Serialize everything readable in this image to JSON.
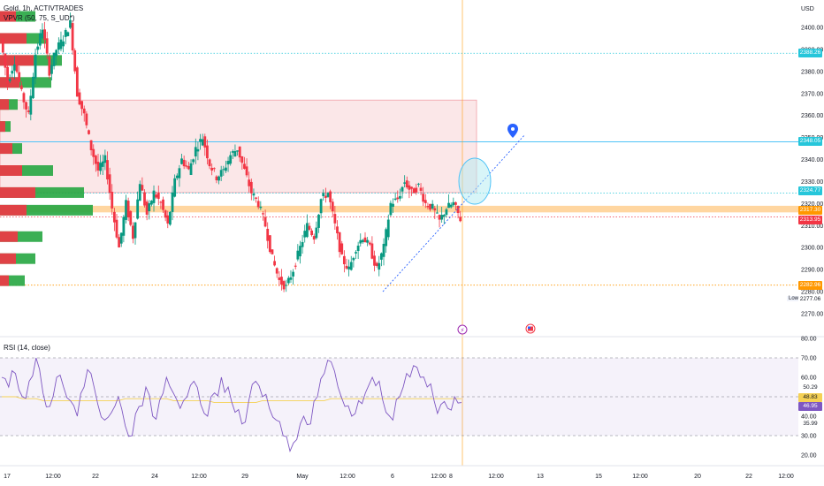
{
  "header": {
    "symbol_line": "Gold, 1h, ACTIVTRADES",
    "vpvr_line": "VPVR (50, 75, S_UD*)",
    "currency": "USD"
  },
  "rsi_legend": "RSI (14, close)",
  "low_label": "Low",
  "colors": {
    "up": "#089981",
    "down": "#f23645",
    "vp_up": "#26a641",
    "vp_down": "#f23645",
    "zone": "#f7d3d6",
    "orange_band": "#ffc880",
    "hline_blue": "#26c6da",
    "rsi": "#7e57c2",
    "rsi_ma": "#f5d154",
    "vline": "#ff9800",
    "marker": "#2962ff"
  },
  "icons": [
    "lightning-event-icon",
    "us-flag-event-icon",
    "location-pin-icon"
  ],
  "chart_data": [
    {
      "type": "candlestick",
      "title": "Gold, 1h, ACTIVTRADES",
      "ylim": [
        2265,
        2415
      ],
      "y_ticks": [
        "2400.00",
        "2390.00",
        "2380.00",
        "2370.00",
        "2360.00",
        "2350.00",
        "2340.00",
        "2330.00",
        "2320.00",
        "2310.00",
        "2300.00",
        "2290.00",
        "2280.00",
        "2270.00"
      ],
      "price_labels": [
        {
          "value": "2388.26",
          "color": "#26c6da"
        },
        {
          "value": "2348.05",
          "color": "#26c6da"
        },
        {
          "value": "2324.77",
          "color": "#26c6da"
        },
        {
          "value": "2317.30",
          "color": "#ff9800"
        },
        {
          "value": "2313.95",
          "color": "#f23645"
        },
        {
          "value": "2282.96",
          "color": "#ff9800"
        },
        {
          "value": "2277.06",
          "color": "#ffffff"
        }
      ],
      "zone": {
        "from": 2325,
        "to": 2367
      },
      "orange_band": {
        "from": 2316,
        "to": 2319
      },
      "price_path": [
        2395,
        2375,
        2385,
        2370,
        2360,
        2388,
        2400,
        2380,
        2390,
        2395,
        2402,
        2370,
        2360,
        2345,
        2335,
        2340,
        2318,
        2300,
        2320,
        2305,
        2330,
        2315,
        2325,
        2320,
        2310,
        2330,
        2340,
        2335,
        2345,
        2350,
        2338,
        2332,
        2335,
        2342,
        2345,
        2335,
        2325,
        2320,
        2310,
        2295,
        2285,
        2282,
        2290,
        2300,
        2310,
        2305,
        2322,
        2325,
        2310,
        2295,
        2290,
        2300,
        2305,
        2300,
        2290,
        2300,
        2320,
        2322,
        2330,
        2325,
        2328,
        2320,
        2318,
        2312,
        2318,
        2320,
        2313
      ],
      "volume_profile_levels": [
        2405,
        2395,
        2385,
        2375,
        2365,
        2355,
        2345,
        2335,
        2325,
        2317,
        2305,
        2295,
        2285
      ]
    },
    {
      "type": "line",
      "title": "RSI (14, close)",
      "ylim": [
        17,
        82
      ],
      "y_ticks": [
        "80.00",
        "70.00",
        "60.00",
        "50.00",
        "40.00",
        "30.00",
        "20.00"
      ],
      "bands": {
        "upper": 70,
        "middle": 50,
        "lower": 30
      },
      "value_labels": [
        {
          "value": "50.29",
          "color": "#ffffff"
        },
        {
          "value": "48.83",
          "color": "#f5d154"
        },
        {
          "value": "46.95",
          "color": "#7e57c2"
        },
        {
          "value": "35.99",
          "color": "#ffffff"
        }
      ],
      "series": [
        {
          "values": [
            60,
            55,
            62,
            50,
            58,
            70,
            52,
            45,
            60,
            55,
            48,
            40,
            55,
            62,
            46,
            38,
            42,
            50,
            35,
            30,
            45,
            55,
            40,
            48,
            60,
            52,
            44,
            50,
            58,
            46,
            40,
            52,
            60,
            55,
            42,
            36,
            48,
            58,
            50,
            44,
            38,
            30,
            22,
            28,
            40,
            36,
            50,
            62,
            68,
            55,
            45,
            40,
            48,
            52,
            60,
            58,
            42,
            38,
            50,
            62,
            66,
            60,
            55,
            48,
            46,
            44,
            50,
            47
          ]
        },
        {
          "values": [
            50,
            50,
            50,
            49,
            49,
            49,
            48,
            48,
            48,
            48,
            48,
            48,
            48,
            48,
            48,
            48,
            48,
            48,
            49,
            49,
            49,
            49,
            49,
            49,
            49,
            48,
            48,
            48,
            48,
            48,
            48,
            47,
            47,
            47,
            47,
            47,
            47,
            47,
            48,
            48,
            48,
            48,
            48,
            48,
            48,
            48,
            48,
            48,
            49,
            49,
            49,
            49,
            49,
            49,
            49,
            49,
            49,
            49,
            49,
            49,
            49,
            49,
            49,
            49,
            49,
            49,
            49,
            49
          ]
        }
      ]
    }
  ],
  "x_axis": {
    "labels": [
      "17",
      "12:00",
      "22",
      "24",
      "12:00",
      "29",
      "May",
      "12:00",
      "6",
      "12:00",
      "8",
      "12:00",
      "13",
      "15",
      "12:00",
      "20",
      "22",
      "12:00"
    ]
  }
}
